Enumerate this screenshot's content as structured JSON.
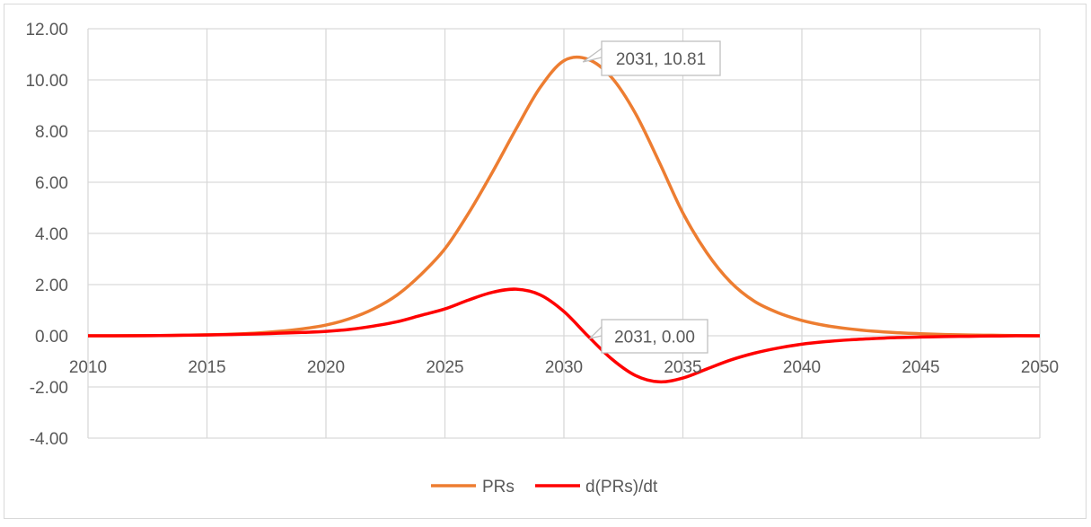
{
  "chart_data": {
    "type": "line",
    "title": "",
    "xlabel": "",
    "ylabel": "",
    "xlim": [
      2010,
      2050
    ],
    "ylim": [
      -4,
      12
    ],
    "x_ticks": [
      "2010",
      "2015",
      "2020",
      "2025",
      "2030",
      "2035",
      "2040",
      "2045",
      "2050"
    ],
    "x_tick_values": [
      2010,
      2015,
      2020,
      2025,
      2030,
      2035,
      2040,
      2045,
      2050
    ],
    "y_ticks": [
      "12.00",
      "10.00",
      "8.00",
      "6.00",
      "4.00",
      "2.00",
      "0.00",
      "-2.00",
      "-4.00"
    ],
    "y_tick_values": [
      12,
      10,
      8,
      6,
      4,
      2,
      0,
      -2,
      -4
    ],
    "grid": true,
    "legend_position": "bottom",
    "x": [
      2010,
      2011,
      2012,
      2013,
      2014,
      2015,
      2016,
      2017,
      2018,
      2019,
      2020,
      2021,
      2022,
      2023,
      2024,
      2025,
      2026,
      2027,
      2028,
      2029,
      2030,
      2031,
      2032,
      2033,
      2034,
      2035,
      2036,
      2037,
      2038,
      2039,
      2040,
      2041,
      2042,
      2043,
      2044,
      2045,
      2046,
      2047,
      2048,
      2049,
      2050
    ],
    "series": [
      {
        "name": "PRs",
        "color": "#ED7D31",
        "values": [
          0,
          0,
          0.01,
          0.01,
          0.02,
          0.04,
          0.06,
          0.1,
          0.17,
          0.27,
          0.42,
          0.67,
          1.05,
          1.6,
          2.4,
          3.4,
          4.8,
          6.4,
          8.1,
          9.7,
          10.75,
          10.81,
          10.1,
          8.7,
          6.8,
          4.8,
          3.25,
          2.1,
          1.35,
          0.9,
          0.6,
          0.4,
          0.27,
          0.18,
          0.12,
          0.08,
          0.05,
          0.03,
          0.02,
          0.01,
          0
        ]
      },
      {
        "name": "d(PRs)/dt",
        "color": "#FF0000",
        "values": [
          0,
          0,
          0,
          0.01,
          0.02,
          0.03,
          0.05,
          0.07,
          0.1,
          0.13,
          0.17,
          0.25,
          0.38,
          0.55,
          0.8,
          1.05,
          1.4,
          1.7,
          1.82,
          1.6,
          0.95,
          0,
          -0.9,
          -1.55,
          -1.8,
          -1.65,
          -1.3,
          -0.95,
          -0.68,
          -0.48,
          -0.33,
          -0.23,
          -0.16,
          -0.11,
          -0.07,
          -0.05,
          -0.03,
          -0.02,
          -0.01,
          0,
          0
        ]
      }
    ],
    "annotations": [
      {
        "text": "2031, 10.81",
        "x": 2030.5,
        "y": 10.81,
        "series": "PRs"
      },
      {
        "text": "2031, 0.00",
        "x": 2031,
        "y": 0,
        "series": "d(PRs)/dt"
      }
    ]
  }
}
